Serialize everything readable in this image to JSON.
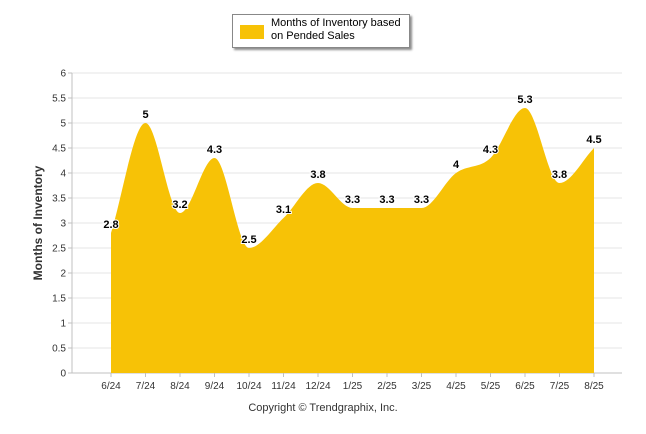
{
  "chart_data": {
    "type": "area",
    "categories": [
      "6/24",
      "7/24",
      "8/24",
      "9/24",
      "10/24",
      "11/24",
      "12/24",
      "1/25",
      "2/25",
      "3/25",
      "4/25",
      "5/25",
      "6/25",
      "7/25",
      "8/25"
    ],
    "series": [
      {
        "name": "Months of Inventory based on Pended Sales",
        "values": [
          2.8,
          5,
          3.2,
          4.3,
          2.5,
          3.1,
          3.8,
          3.3,
          3.3,
          3.3,
          4,
          4.3,
          5.3,
          3.8,
          4.5
        ],
        "data_labels": [
          "2.8",
          "5",
          "3.2",
          "4.3",
          "2.5",
          "3.1",
          "3.8",
          "3.3",
          "3.3",
          "3.3",
          "4",
          "4.3",
          "5.3",
          "3.8",
          "4.5"
        ]
      }
    ],
    "ylabel": "Months of Inventory",
    "ylim": [
      0,
      6
    ],
    "yticks": [
      "0",
      "0.5",
      "1",
      "1.5",
      "2",
      "2.5",
      "3",
      "3.5",
      "4",
      "4.5",
      "5",
      "5.5",
      "6"
    ],
    "grid": true,
    "legend_position": "top-center"
  },
  "colors": {
    "fill": "#F7C206",
    "grid": "#e6e6e6",
    "axis": "#c0c0c0"
  },
  "legend": {
    "label": "Months of Inventory based on Pended Sales"
  },
  "footer": {
    "copyright": "Copyright © Trendgraphix, Inc."
  }
}
